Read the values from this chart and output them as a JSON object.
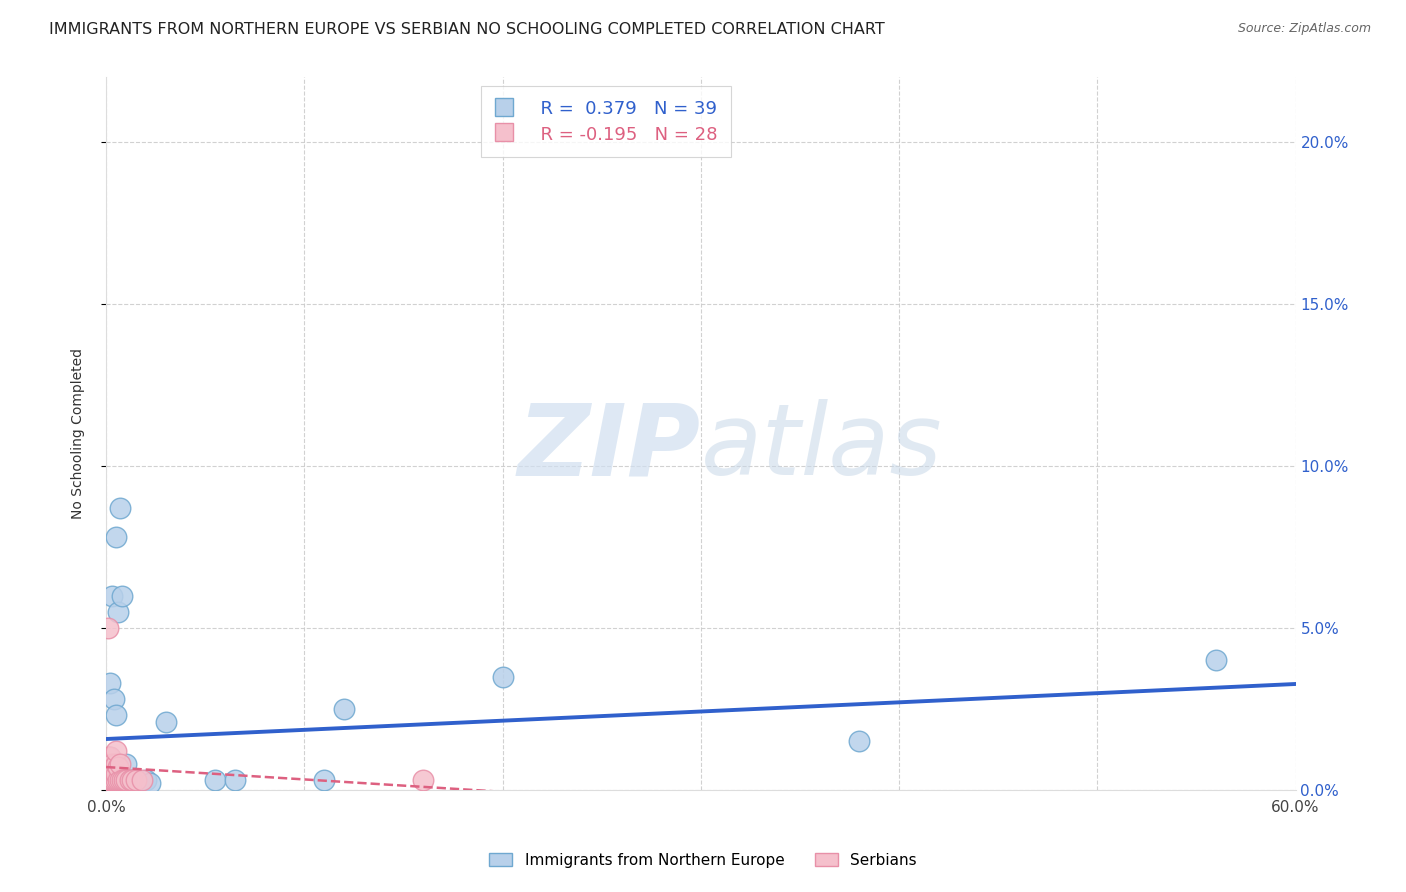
{
  "title": "IMMIGRANTS FROM NORTHERN EUROPE VS SERBIAN NO SCHOOLING COMPLETED CORRELATION CHART",
  "source": "Source: ZipAtlas.com",
  "ylabel": "No Schooling Completed",
  "xlim": [
    0.0,
    0.6
  ],
  "ylim": [
    0.0,
    0.22
  ],
  "ylim_display": [
    0.0,
    0.2
  ],
  "xticks": [
    0.0,
    0.1,
    0.2,
    0.3,
    0.4,
    0.5,
    0.6
  ],
  "xticklabels_show": [
    "0.0%",
    "",
    "",
    "",
    "",
    "",
    "60.0%"
  ],
  "yticks": [
    0.0,
    0.05,
    0.1,
    0.15,
    0.2
  ],
  "watermark_zip": "ZIP",
  "watermark_atlas": "atlas",
  "legend_blue_r": "R =  0.379",
  "legend_blue_n": "N = 39",
  "legend_pink_r": "R = -0.195",
  "legend_pink_n": "N = 28",
  "legend_label_blue": "Immigrants from Northern Europe",
  "legend_label_pink": "Serbians",
  "blue_fill": "#b8d0ea",
  "blue_edge": "#6fa8d0",
  "pink_fill": "#f5c0cc",
  "pink_edge": "#e890a8",
  "blue_line_color": "#3060cc",
  "pink_line_color": "#dd6080",
  "blue_x": [
    0.001,
    0.001,
    0.001,
    0.002,
    0.002,
    0.002,
    0.002,
    0.003,
    0.003,
    0.003,
    0.003,
    0.004,
    0.004,
    0.004,
    0.005,
    0.005,
    0.005,
    0.006,
    0.006,
    0.007,
    0.007,
    0.008,
    0.008,
    0.009,
    0.01,
    0.01,
    0.012,
    0.015,
    0.016,
    0.02,
    0.022,
    0.03,
    0.055,
    0.065,
    0.11,
    0.12,
    0.2,
    0.38,
    0.56
  ],
  "blue_y": [
    0.002,
    0.005,
    0.008,
    0.003,
    0.005,
    0.01,
    0.033,
    0.003,
    0.004,
    0.007,
    0.06,
    0.003,
    0.004,
    0.028,
    0.003,
    0.023,
    0.078,
    0.003,
    0.055,
    0.003,
    0.087,
    0.003,
    0.06,
    0.003,
    0.003,
    0.008,
    0.003,
    0.002,
    0.002,
    0.003,
    0.002,
    0.021,
    0.003,
    0.003,
    0.003,
    0.025,
    0.035,
    0.015,
    0.04
  ],
  "pink_x": [
    0.001,
    0.001,
    0.001,
    0.001,
    0.002,
    0.002,
    0.002,
    0.003,
    0.003,
    0.003,
    0.004,
    0.004,
    0.005,
    0.005,
    0.005,
    0.005,
    0.006,
    0.006,
    0.007,
    0.007,
    0.008,
    0.009,
    0.01,
    0.012,
    0.013,
    0.015,
    0.018,
    0.16
  ],
  "pink_y": [
    0.003,
    0.005,
    0.01,
    0.05,
    0.003,
    0.005,
    0.01,
    0.003,
    0.005,
    0.008,
    0.003,
    0.007,
    0.003,
    0.005,
    0.008,
    0.012,
    0.003,
    0.007,
    0.003,
    0.008,
    0.003,
    0.003,
    0.003,
    0.003,
    0.003,
    0.003,
    0.003,
    0.003
  ],
  "background_color": "#ffffff",
  "grid_color": "#cccccc",
  "title_fontsize": 11.5,
  "axis_label_fontsize": 10,
  "tick_fontsize": 11,
  "right_tick_color": "#3060cc",
  "scatter_size": 220
}
